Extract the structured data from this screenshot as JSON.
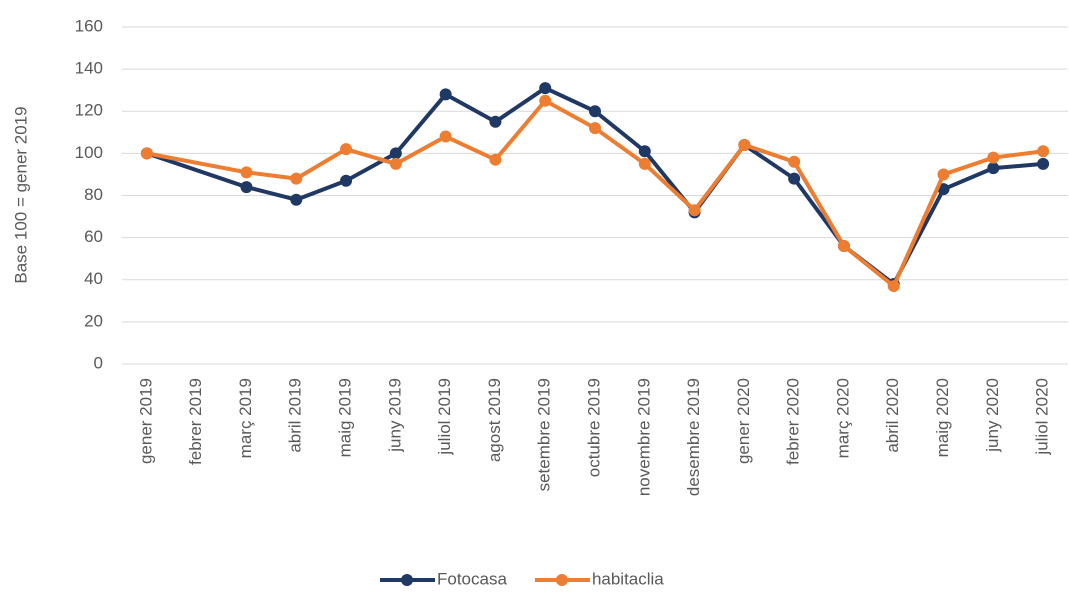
{
  "chart_data": {
    "type": "line",
    "y_label": "Base 100 = gener 2019",
    "categories": [
      "gener 2019",
      "febrer 2019",
      "març 2019",
      "abril 2019",
      "maig 2019",
      "juny 2019",
      "juliol 2019",
      "agost 2019",
      "setembre 2019",
      "octubre 2019",
      "novembre 2019",
      "desembre 2019",
      "gener 2020",
      "febrer 2020",
      "març 2020",
      "abril 2020",
      "maig 2020",
      "juny 2020",
      "juliol 2020"
    ],
    "series": [
      {
        "name": "Fotocasa",
        "color": "#203864",
        "values": [
          100,
          null,
          84,
          78,
          87,
          100,
          128,
          115,
          131,
          120,
          101,
          72,
          104,
          88,
          56,
          38,
          83,
          93,
          95
        ]
      },
      {
        "name": "habitaclia",
        "color": "#ED7D31",
        "values": [
          100,
          null,
          91,
          88,
          102,
          95,
          108,
          97,
          125,
          112,
          95,
          73,
          104,
          96,
          56,
          37,
          90,
          98,
          101
        ]
      }
    ],
    "ylim": [
      0,
      160
    ],
    "yticks": [
      0,
      20,
      40,
      60,
      80,
      100,
      120,
      140,
      160
    ],
    "grid": true,
    "legend": "bottom"
  }
}
